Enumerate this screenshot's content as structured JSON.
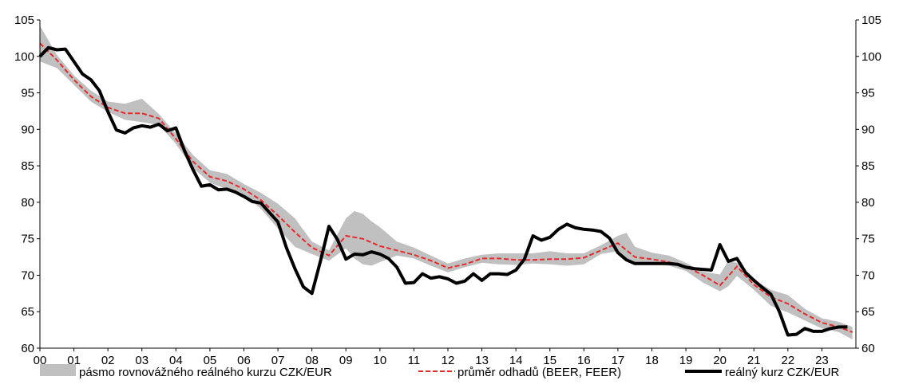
{
  "chart_data": {
    "type": "line",
    "title": "",
    "xlabel": "",
    "ylabel": "",
    "ylim": [
      60,
      105
    ],
    "xlim": [
      2000.0,
      2024.0
    ],
    "y_ticks": [
      60,
      65,
      70,
      75,
      80,
      85,
      90,
      95,
      100,
      105
    ],
    "x_tick_labels": [
      "00",
      "01",
      "02",
      "03",
      "04",
      "05",
      "06",
      "07",
      "08",
      "09",
      "10",
      "11",
      "12",
      "13",
      "14",
      "15",
      "16",
      "17",
      "18",
      "19",
      "20",
      "21",
      "22",
      "23"
    ],
    "grid": false,
    "legend_position": "bottom",
    "legend": [
      {
        "key": "band",
        "label": "pásmo rovnovážného reálného kurzu CZK/EUR",
        "swatch": "band"
      },
      {
        "key": "avg",
        "label": "průměr odhadů (BEER, FEER)",
        "swatch": "dashed"
      },
      {
        "key": "real",
        "label": "reálný kurz CZK/EUR",
        "swatch": "solid"
      }
    ],
    "colors": {
      "band": "#c0c0c0",
      "avg": "#e8282a",
      "real": "#000000",
      "axis": "#000000"
    },
    "series": {
      "real": {
        "name": "reálný kurz CZK/EUR",
        "x": [
          2000.0,
          2000.25,
          2000.5,
          2000.75,
          2001.0,
          2001.25,
          2001.5,
          2001.75,
          2002.0,
          2002.25,
          2002.5,
          2002.75,
          2003.0,
          2003.25,
          2003.5,
          2003.75,
          2004.0,
          2004.25,
          2004.5,
          2004.75,
          2005.0,
          2005.25,
          2005.5,
          2005.75,
          2006.0,
          2006.25,
          2006.5,
          2006.75,
          2007.0,
          2007.25,
          2007.5,
          2007.75,
          2008.0,
          2008.25,
          2008.5,
          2008.75,
          2009.0,
          2009.25,
          2009.5,
          2009.75,
          2010.0,
          2010.25,
          2010.5,
          2010.75,
          2011.0,
          2011.25,
          2011.5,
          2011.75,
          2012.0,
          2012.25,
          2012.5,
          2012.75,
          2013.0,
          2013.25,
          2013.5,
          2013.75,
          2014.0,
          2014.25,
          2014.5,
          2014.75,
          2015.0,
          2015.25,
          2015.5,
          2015.75,
          2016.0,
          2016.25,
          2016.5,
          2016.75,
          2017.0,
          2017.25,
          2017.5,
          2017.75,
          2018.0,
          2018.25,
          2018.5,
          2018.75,
          2019.0,
          2019.25,
          2019.5,
          2019.75,
          2020.0,
          2020.25,
          2020.5,
          2020.75,
          2021.0,
          2021.25,
          2021.5,
          2021.75,
          2022.0,
          2022.25,
          2022.5,
          2022.75,
          2023.0,
          2023.25,
          2023.5,
          2023.75
        ],
        "y": [
          100.0,
          101.2,
          100.9,
          101.0,
          99.3,
          97.6,
          96.8,
          95.3,
          92.4,
          89.9,
          89.5,
          90.2,
          90.5,
          90.3,
          90.7,
          89.8,
          90.2,
          87.1,
          84.5,
          82.2,
          82.4,
          81.7,
          81.8,
          81.4,
          80.8,
          80.1,
          79.9,
          78.6,
          77.3,
          73.8,
          70.9,
          68.4,
          67.5,
          71.9,
          76.7,
          74.9,
          72.2,
          72.9,
          72.8,
          73.2,
          72.9,
          72.3,
          71.1,
          68.9,
          69.0,
          70.2,
          69.6,
          69.8,
          69.5,
          68.9,
          69.2,
          70.2,
          69.3,
          70.2,
          70.2,
          70.1,
          70.7,
          72.2,
          75.4,
          74.8,
          75.2,
          76.3,
          77.0,
          76.5,
          76.3,
          76.2,
          76.0,
          75.1,
          73.1,
          72.1,
          71.6,
          71.6,
          71.6,
          71.6,
          71.6,
          71.5,
          71.1,
          70.9,
          70.8,
          70.7,
          74.2,
          71.9,
          72.3,
          70.4,
          69.3,
          68.3,
          67.4,
          65.0,
          61.8,
          61.9,
          62.7,
          62.3,
          62.3,
          62.7,
          62.9,
          62.9
        ]
      },
      "avg": {
        "name": "průměr odhadů (BEER, FEER)",
        "x": [
          2000.0,
          2000.5,
          2001.0,
          2001.5,
          2002.0,
          2002.5,
          2003.0,
          2003.5,
          2004.0,
          2004.5,
          2005.0,
          2005.5,
          2006.0,
          2006.5,
          2007.0,
          2007.5,
          2008.0,
          2008.5,
          2009.0,
          2009.5,
          2010.0,
          2010.5,
          2011.0,
          2011.5,
          2012.0,
          2012.5,
          2013.0,
          2013.5,
          2014.0,
          2014.5,
          2015.0,
          2015.5,
          2016.0,
          2016.5,
          2017.0,
          2017.5,
          2018.0,
          2018.5,
          2019.0,
          2019.5,
          2020.0,
          2020.5,
          2021.0,
          2021.5,
          2022.0,
          2022.5,
          2023.0,
          2023.5,
          2023.9
        ],
        "y": [
          101.8,
          99.5,
          96.8,
          94.5,
          93.0,
          92.2,
          92.2,
          91.5,
          88.7,
          85.6,
          83.5,
          82.9,
          81.8,
          80.3,
          78.2,
          75.9,
          73.8,
          72.7,
          75.4,
          75.0,
          74.0,
          73.4,
          72.8,
          72.0,
          71.0,
          71.5,
          72.3,
          72.3,
          72.1,
          72.1,
          72.2,
          72.2,
          72.4,
          73.4,
          74.4,
          72.5,
          72.2,
          71.8,
          71.2,
          70.0,
          68.6,
          71.2,
          68.7,
          67.0,
          66.1,
          64.7,
          63.5,
          62.9,
          62.2
        ]
      },
      "band": {
        "name": "pásmo rovnovážného reálného kurzu CZK/EUR",
        "x": [
          2000.0,
          2000.5,
          2001.0,
          2001.5,
          2002.0,
          2002.5,
          2003.0,
          2003.5,
          2004.0,
          2004.5,
          2005.0,
          2005.5,
          2006.0,
          2006.5,
          2007.0,
          2007.5,
          2008.0,
          2008.5,
          2009.0,
          2009.25,
          2009.5,
          2009.75,
          2010.0,
          2010.5,
          2011.0,
          2011.5,
          2012.0,
          2012.5,
          2013.0,
          2013.5,
          2014.0,
          2014.5,
          2015.0,
          2015.5,
          2016.0,
          2016.5,
          2017.0,
          2017.25,
          2017.5,
          2018.0,
          2018.5,
          2019.0,
          2019.5,
          2020.0,
          2020.25,
          2020.5,
          2021.0,
          2021.5,
          2022.0,
          2022.5,
          2023.0,
          2023.5,
          2023.9
        ],
        "upper": [
          104.2,
          100.2,
          97.4,
          95.3,
          93.8,
          93.5,
          94.2,
          92.1,
          89.4,
          86.5,
          84.4,
          83.9,
          82.5,
          81.3,
          79.8,
          77.8,
          74.6,
          73.4,
          77.8,
          78.8,
          78.4,
          77.4,
          76.6,
          74.6,
          73.8,
          72.7,
          71.6,
          72.3,
          72.8,
          73.0,
          73.0,
          73.0,
          73.3,
          73.0,
          73.0,
          74.1,
          75.4,
          75.8,
          73.9,
          73.1,
          72.7,
          71.7,
          70.5,
          70.1,
          72.0,
          71.7,
          69.4,
          68.0,
          67.3,
          65.4,
          64.1,
          63.6,
          62.9
        ],
        "lower": [
          99.3,
          98.4,
          96.1,
          93.8,
          92.4,
          91.3,
          91.0,
          90.6,
          88.0,
          84.7,
          82.7,
          81.8,
          81.0,
          79.1,
          76.4,
          73.9,
          72.9,
          72.0,
          73.7,
          72.3,
          71.5,
          71.3,
          71.8,
          72.7,
          72.3,
          71.3,
          70.4,
          71.1,
          71.7,
          71.5,
          71.4,
          71.6,
          71.5,
          71.3,
          71.5,
          72.9,
          73.3,
          72.2,
          71.5,
          71.5,
          71.3,
          70.6,
          69.0,
          67.8,
          68.5,
          69.9,
          68.0,
          65.8,
          64.9,
          63.8,
          62.7,
          62.2,
          61.2
        ]
      }
    }
  }
}
